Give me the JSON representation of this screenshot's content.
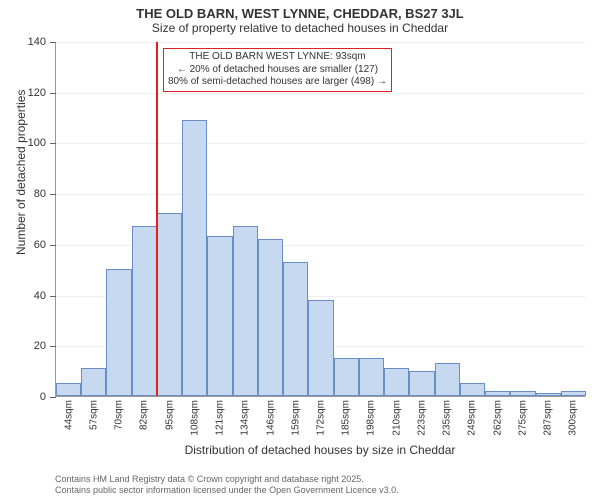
{
  "title": "THE OLD BARN, WEST LYNNE, CHEDDAR, BS27 3JL",
  "subtitle": "Size of property relative to detached houses in Cheddar",
  "chart": {
    "type": "histogram",
    "ylabel": "Number of detached properties",
    "xlabel": "Distribution of detached houses by size in Cheddar",
    "ylim": [
      0,
      140
    ],
    "ytick_step": 20,
    "bar_color": "#c6d9f1",
    "bar_border_color": "#6a8cc7",
    "bar_border_width": 1,
    "background_color": "#ffffff",
    "grid_color": "#eeeeee",
    "axis_color": "#999999",
    "label_fontsize": 12,
    "tick_fontsize": 11,
    "xtick_fontsize": 10,
    "bins": [
      {
        "label": "44sqm",
        "value": 5
      },
      {
        "label": "57sqm",
        "value": 11
      },
      {
        "label": "70sqm",
        "value": 50
      },
      {
        "label": "82sqm",
        "value": 67
      },
      {
        "label": "95sqm",
        "value": 72
      },
      {
        "label": "108sqm",
        "value": 109
      },
      {
        "label": "121sqm",
        "value": 63
      },
      {
        "label": "134sqm",
        "value": 67
      },
      {
        "label": "146sqm",
        "value": 62
      },
      {
        "label": "159sqm",
        "value": 53
      },
      {
        "label": "172sqm",
        "value": 38
      },
      {
        "label": "185sqm",
        "value": 15
      },
      {
        "label": "198sqm",
        "value": 15
      },
      {
        "label": "210sqm",
        "value": 11
      },
      {
        "label": "223sqm",
        "value": 10
      },
      {
        "label": "235sqm",
        "value": 13
      },
      {
        "label": "249sqm",
        "value": 5
      },
      {
        "label": "262sqm",
        "value": 2
      },
      {
        "label": "275sqm",
        "value": 2
      },
      {
        "label": "287sqm",
        "value": 1
      },
      {
        "label": "300sqm",
        "value": 2
      }
    ],
    "reference_line": {
      "bin_index": 4,
      "color": "#e02020",
      "width": 2
    },
    "info_box": {
      "line1": "THE OLD BARN WEST LYNNE: 93sqm",
      "line2": "← 20% of detached houses are smaller (127)",
      "line3": "80% of semi-detached houses are larger (498) →",
      "border_color": "#e02020",
      "border_width": 1,
      "text_color": "#333333"
    }
  },
  "footer1": "Contains HM Land Registry data © Crown copyright and database right 2025.",
  "footer2": "Contains public sector information licensed under the Open Government Licence v3.0."
}
